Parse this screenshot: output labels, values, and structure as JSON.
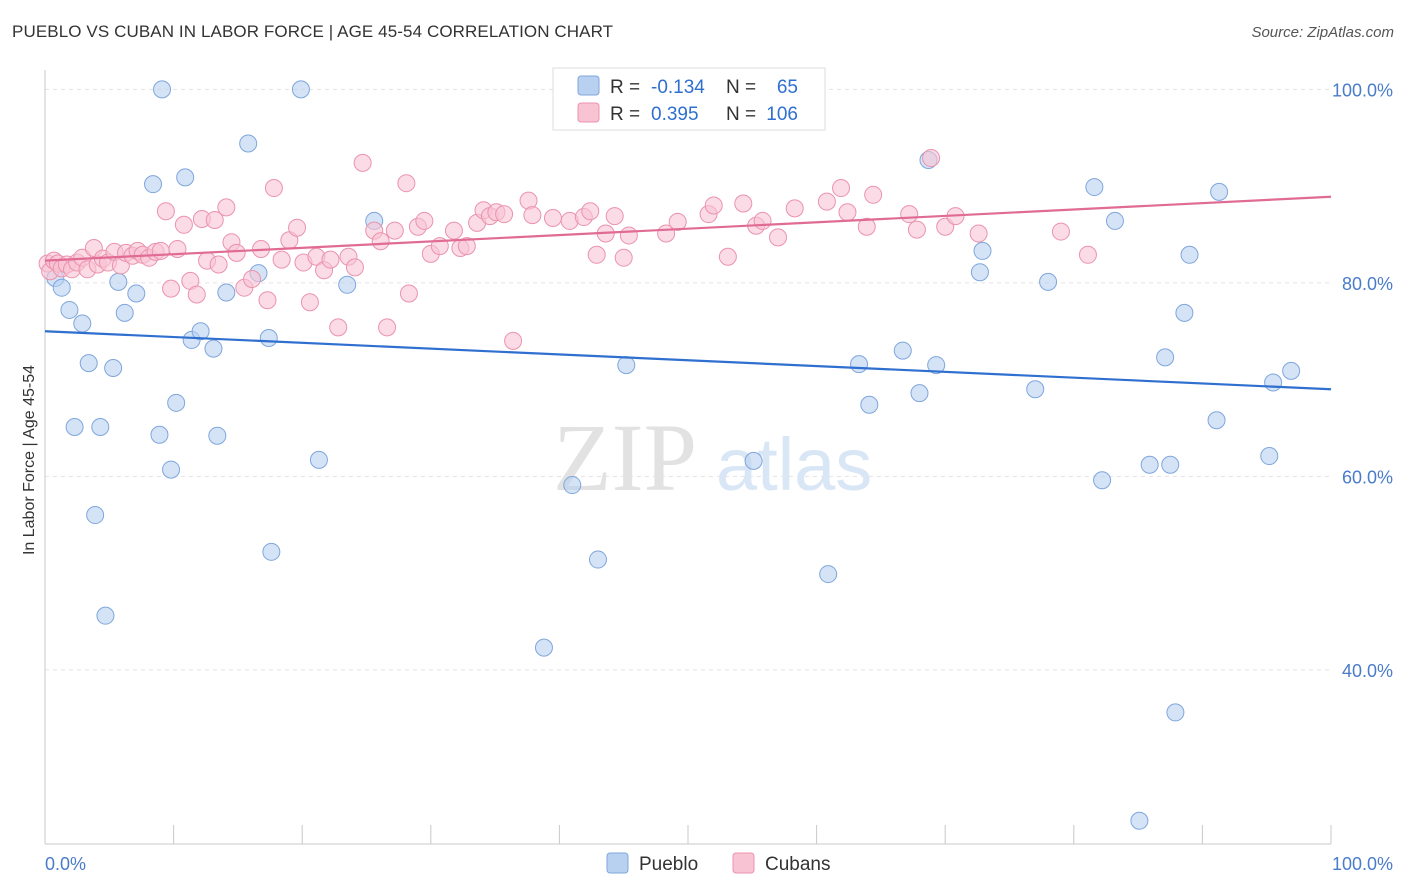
{
  "header": {
    "title": "PUEBLO VS CUBAN IN LABOR FORCE | AGE 45-54 CORRELATION CHART",
    "source": "Source: ZipAtlas.com"
  },
  "watermark": {
    "zip": "ZIP",
    "atlas": "atlas"
  },
  "colors": {
    "pueblo_fill": "#b8d1f0",
    "pueblo_stroke": "#7fa6dc",
    "pueblo_line": "#2f6fcf",
    "cubans_fill": "#f8c3d3",
    "cubans_stroke": "#eb93ae",
    "cubans_line": "#e06b94",
    "value_text": "#2f6fcf",
    "grid": "#e3e3e3"
  },
  "stats_legend": {
    "rows": [
      {
        "series": "Pueblo",
        "r_label": "R =",
        "r_value": "-0.134",
        "n_label": "N =",
        "n_value": "65"
      },
      {
        "series": "Cubans",
        "r_label": "R =",
        "r_value": "0.395",
        "n_label": "N =",
        "n_value": "106"
      }
    ]
  },
  "bottom_legend": [
    "Pueblo",
    "Cubans"
  ],
  "chart_data": {
    "type": "scatter",
    "title": "PUEBLO VS CUBAN IN LABOR FORCE | AGE 45-54 CORRELATION CHART",
    "xlabel": "",
    "ylabel": "In Labor Force | Age 45-54",
    "xlim": [
      0,
      100
    ],
    "ylim": [
      22,
      102
    ],
    "x_tick_labels": [
      "0.0%",
      "100.0%"
    ],
    "y_ticks": [
      40,
      60,
      80,
      100
    ],
    "y_tick_labels": [
      "40.0%",
      "60.0%",
      "80.0%",
      "100.0%"
    ],
    "grid": true,
    "legend": "bottom-center",
    "series": [
      {
        "name": "Pueblo",
        "trend": {
          "x": [
            0,
            100
          ],
          "y": [
            75.0,
            69.0
          ]
        },
        "points": [
          [
            0.8,
            80.5
          ],
          [
            1.3,
            79.5
          ],
          [
            1.9,
            77.2
          ],
          [
            2.3,
            65.1
          ],
          [
            2.9,
            75.8
          ],
          [
            3.4,
            71.7
          ],
          [
            3.9,
            56.0
          ],
          [
            4.3,
            65.1
          ],
          [
            4.7,
            45.6
          ],
          [
            5.3,
            71.2
          ],
          [
            5.7,
            80.1
          ],
          [
            6.2,
            76.9
          ],
          [
            7.1,
            78.9
          ],
          [
            8.4,
            90.2
          ],
          [
            8.9,
            64.3
          ],
          [
            9.1,
            100.0
          ],
          [
            9.8,
            60.7
          ],
          [
            10.2,
            67.6
          ],
          [
            10.9,
            90.9
          ],
          [
            11.4,
            74.1
          ],
          [
            12.1,
            75.0
          ],
          [
            13.1,
            73.2
          ],
          [
            13.4,
            64.2
          ],
          [
            14.1,
            79.0
          ],
          [
            15.8,
            94.4
          ],
          [
            16.6,
            81.0
          ],
          [
            17.4,
            74.3
          ],
          [
            17.6,
            52.2
          ],
          [
            19.9,
            100.0
          ],
          [
            21.3,
            61.7
          ],
          [
            23.5,
            79.8
          ],
          [
            25.6,
            86.4
          ],
          [
            38.8,
            42.3
          ],
          [
            41.0,
            59.1
          ],
          [
            43.0,
            51.4
          ],
          [
            45.2,
            71.5
          ],
          [
            47.3,
            100.0
          ],
          [
            59.5,
            100.0
          ],
          [
            60.9,
            49.9
          ],
          [
            63.3,
            71.6
          ],
          [
            64.1,
            67.4
          ],
          [
            66.7,
            73.0
          ],
          [
            68.0,
            68.6
          ],
          [
            68.7,
            92.7
          ],
          [
            69.3,
            71.5
          ],
          [
            72.7,
            81.1
          ],
          [
            72.9,
            83.3
          ],
          [
            78.0,
            80.1
          ],
          [
            77.0,
            69.0
          ],
          [
            81.6,
            89.9
          ],
          [
            82.2,
            59.6
          ],
          [
            83.2,
            86.4
          ],
          [
            85.1,
            24.4
          ],
          [
            85.9,
            61.2
          ],
          [
            87.1,
            72.3
          ],
          [
            87.5,
            61.2
          ],
          [
            87.9,
            35.6
          ],
          [
            88.6,
            76.9
          ],
          [
            89.0,
            82.9
          ],
          [
            91.1,
            65.8
          ],
          [
            91.3,
            89.4
          ],
          [
            95.2,
            62.1
          ],
          [
            95.5,
            69.7
          ],
          [
            96.9,
            70.9
          ],
          [
            55.1,
            61.6
          ]
        ]
      },
      {
        "name": "Cubans",
        "trend": {
          "x": [
            0,
            100
          ],
          "y": [
            82.3,
            88.9
          ]
        },
        "points": [
          [
            0.2,
            82.0
          ],
          [
            0.4,
            81.2
          ],
          [
            0.7,
            82.3
          ],
          [
            1.0,
            82.0
          ],
          [
            1.3,
            81.5
          ],
          [
            1.7,
            81.9
          ],
          [
            2.1,
            81.4
          ],
          [
            2.5,
            82.1
          ],
          [
            2.9,
            82.6
          ],
          [
            3.3,
            81.4
          ],
          [
            3.8,
            83.6
          ],
          [
            4.1,
            81.9
          ],
          [
            4.5,
            82.5
          ],
          [
            4.9,
            82.1
          ],
          [
            5.4,
            83.2
          ],
          [
            5.9,
            81.8
          ],
          [
            6.3,
            83.1
          ],
          [
            6.8,
            82.8
          ],
          [
            7.2,
            83.3
          ],
          [
            7.6,
            82.9
          ],
          [
            8.1,
            82.6
          ],
          [
            8.6,
            83.2
          ],
          [
            9.0,
            83.3
          ],
          [
            9.4,
            87.4
          ],
          [
            9.8,
            79.4
          ],
          [
            10.3,
            83.5
          ],
          [
            10.8,
            86.0
          ],
          [
            11.3,
            80.2
          ],
          [
            11.8,
            78.8
          ],
          [
            12.2,
            86.6
          ],
          [
            12.6,
            82.3
          ],
          [
            13.2,
            86.5
          ],
          [
            13.5,
            81.9
          ],
          [
            14.1,
            87.8
          ],
          [
            14.5,
            84.2
          ],
          [
            14.9,
            83.1
          ],
          [
            15.5,
            79.5
          ],
          [
            16.1,
            80.4
          ],
          [
            16.8,
            83.5
          ],
          [
            17.3,
            78.2
          ],
          [
            17.8,
            89.8
          ],
          [
            18.4,
            82.4
          ],
          [
            19.0,
            84.4
          ],
          [
            19.6,
            85.7
          ],
          [
            20.1,
            82.1
          ],
          [
            20.6,
            78.0
          ],
          [
            21.1,
            82.7
          ],
          [
            21.7,
            81.3
          ],
          [
            22.2,
            82.4
          ],
          [
            22.8,
            75.4
          ],
          [
            23.6,
            82.7
          ],
          [
            24.1,
            81.6
          ],
          [
            24.7,
            92.4
          ],
          [
            25.6,
            85.4
          ],
          [
            26.1,
            84.3
          ],
          [
            26.6,
            75.4
          ],
          [
            27.2,
            85.4
          ],
          [
            28.1,
            90.3
          ],
          [
            28.3,
            78.9
          ],
          [
            29.0,
            85.8
          ],
          [
            29.5,
            86.4
          ],
          [
            30.0,
            83.0
          ],
          [
            30.7,
            83.8
          ],
          [
            31.8,
            85.4
          ],
          [
            32.3,
            83.6
          ],
          [
            32.8,
            83.8
          ],
          [
            33.6,
            86.2
          ],
          [
            34.1,
            87.5
          ],
          [
            34.6,
            86.9
          ],
          [
            35.1,
            87.3
          ],
          [
            35.7,
            87.1
          ],
          [
            36.4,
            74.0
          ],
          [
            37.6,
            88.5
          ],
          [
            37.9,
            87.0
          ],
          [
            39.5,
            86.7
          ],
          [
            40.8,
            86.4
          ],
          [
            41.9,
            86.8
          ],
          [
            42.4,
            87.4
          ],
          [
            42.9,
            82.9
          ],
          [
            43.6,
            85.1
          ],
          [
            44.3,
            86.9
          ],
          [
            45.0,
            82.6
          ],
          [
            45.4,
            84.9
          ],
          [
            48.3,
            85.1
          ],
          [
            49.2,
            86.3
          ],
          [
            51.6,
            87.1
          ],
          [
            52.0,
            88.0
          ],
          [
            53.1,
            82.7
          ],
          [
            54.3,
            88.2
          ],
          [
            55.3,
            85.9
          ],
          [
            55.8,
            86.4
          ],
          [
            57.0,
            84.7
          ],
          [
            58.3,
            87.7
          ],
          [
            60.8,
            88.4
          ],
          [
            61.9,
            89.8
          ],
          [
            62.4,
            87.3
          ],
          [
            63.9,
            85.8
          ],
          [
            64.4,
            89.1
          ],
          [
            67.2,
            87.1
          ],
          [
            67.8,
            85.5
          ],
          [
            68.9,
            92.9
          ],
          [
            70.0,
            85.8
          ],
          [
            70.8,
            86.9
          ],
          [
            72.6,
            85.1
          ],
          [
            79.0,
            85.3
          ],
          [
            81.1,
            82.9
          ]
        ]
      }
    ]
  }
}
